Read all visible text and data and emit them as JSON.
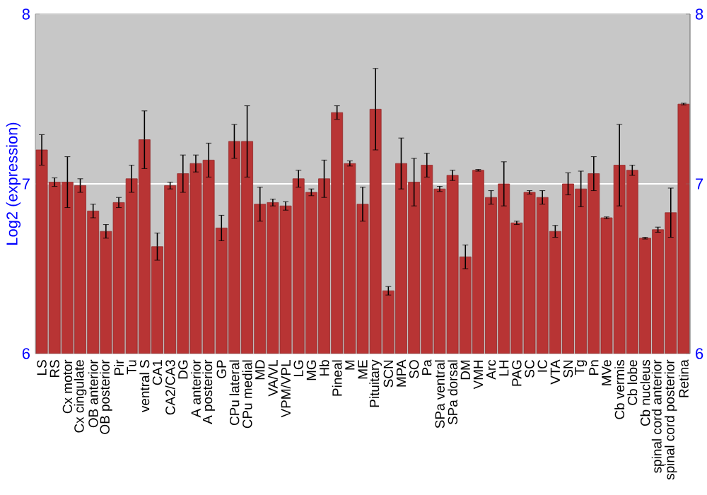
{
  "chart_data": {
    "type": "bar",
    "ylabel": "Log2 (expression)",
    "categories": [
      "LS",
      "RS",
      "Cx motor",
      "Cx cingulate",
      "OB anterior",
      "OB posterior",
      "Pir",
      "Tu",
      "ventral S",
      "CA1",
      "CA2/CA3",
      "DG",
      "A anterior",
      "A posterior",
      "GP",
      "CPu lateral",
      "CPu medial",
      "MD",
      "VA/VL",
      "VPM/VPL",
      "LG",
      "MG",
      "Hb",
      "Pineal",
      "M",
      "ME",
      "Pituitary",
      "SCN",
      "MPA",
      "SO",
      "Pa",
      "SPa ventral",
      "SPa dorsal",
      "DM",
      "VMH",
      "Arc",
      "LH",
      "PAG",
      "SC",
      "IC",
      "VTA",
      "SN",
      "Tg",
      "Pn",
      "MVe",
      "Cb vermis",
      "Cb lobe",
      "Cb nucleus",
      "spinal cord anterior",
      "spinal cord posterior",
      "Retina"
    ],
    "values": [
      7.2,
      7.01,
      7.01,
      6.99,
      6.84,
      6.72,
      6.89,
      7.03,
      7.26,
      6.63,
      6.99,
      7.06,
      7.12,
      7.14,
      6.74,
      7.25,
      7.25,
      6.88,
      6.89,
      6.87,
      7.03,
      6.95,
      7.03,
      7.42,
      7.12,
      6.88,
      7.44,
      6.37,
      7.12,
      7.01,
      7.11,
      6.97,
      7.05,
      6.57,
      7.08,
      6.92,
      7.0,
      6.77,
      6.95,
      6.92,
      6.72,
      7.0,
      6.97,
      7.06,
      6.8,
      7.11,
      7.08,
      6.68,
      6.73,
      6.83,
      7.47
    ],
    "errors": [
      0.09,
      0.025,
      0.15,
      0.04,
      0.04,
      0.04,
      0.03,
      0.08,
      0.17,
      0.08,
      0.02,
      0.11,
      0.05,
      0.1,
      0.075,
      0.1,
      0.21,
      0.1,
      0.02,
      0.025,
      0.05,
      0.02,
      0.11,
      0.04,
      0.015,
      0.1,
      0.24,
      0.025,
      0.15,
      0.14,
      0.07,
      0.015,
      0.03,
      0.07,
      0.005,
      0.04,
      0.13,
      0.01,
      0.01,
      0.04,
      0.035,
      0.065,
      0.105,
      0.1,
      0.005,
      0.24,
      0.03,
      0.005,
      0.015,
      0.145,
      0.005
    ],
    "color": "#b83434",
    "ylim": [
      6,
      8
    ],
    "yticks": [
      6,
      7,
      8
    ],
    "y2lim": [
      6,
      8
    ],
    "y2ticks": [
      6,
      7,
      8
    ],
    "grid": "y"
  }
}
